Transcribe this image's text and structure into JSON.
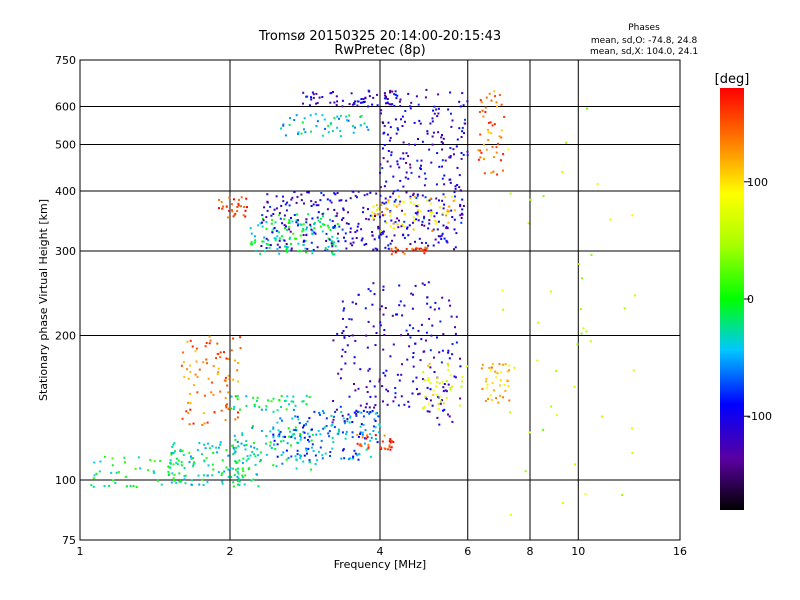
{
  "chart_data": {
    "type": "scatter",
    "title": "Tromsø 20150325 20:14:00-20:15:43",
    "subtitle": "RwPretec (8p)",
    "xlabel": "Frequency [MHz]",
    "ylabel": "Stationary phase Virtual Height [km]",
    "x_scale": "log",
    "y_scale": "log",
    "xlim": [
      1,
      16
    ],
    "ylim": [
      75,
      750
    ],
    "x_ticks": [
      1,
      2,
      4,
      6,
      8,
      10,
      16
    ],
    "x_tick_labels": [
      "1",
      "2",
      "4",
      "6",
      "8",
      "10",
      "16"
    ],
    "y_ticks": [
      75,
      100,
      200,
      300,
      400,
      500,
      600,
      750
    ],
    "y_tick_labels": [
      "75",
      "100",
      "200",
      "300",
      "400",
      "500",
      "600",
      "750"
    ],
    "x_gridlines": [
      2,
      4,
      6,
      8,
      10
    ],
    "y_gridlines": [
      100,
      200,
      300,
      400,
      500,
      600
    ],
    "grid": true,
    "stats_title": "Phases",
    "stats_lines": [
      "mean, sd,O: -74.8, 24.8",
      "mean, sd,X: 104.0, 24.1"
    ],
    "colorbar": {
      "label": "[deg]",
      "range": [
        -180,
        180
      ],
      "tick_values": [
        100,
        0,
        -100
      ],
      "tick_labels": [
        "100",
        "0",
        "-100"
      ]
    },
    "clusters": [
      {
        "x_range": [
          1.05,
          1.6
        ],
        "h_range": [
          96,
          112
        ],
        "phase": -10,
        "count": 40
      },
      {
        "x_range": [
          1.5,
          2.3
        ],
        "h_range": [
          97,
          120
        ],
        "phase": -20,
        "count": 140
      },
      {
        "x_range": [
          2.0,
          3.0
        ],
        "h_range": [
          105,
          130
        ],
        "phase": -30,
        "count": 80
      },
      {
        "x_range": [
          1.6,
          2.1
        ],
        "h_range": [
          130,
          200
        ],
        "phase": 140,
        "count": 90
      },
      {
        "x_range": [
          2.0,
          2.9
        ],
        "h_range": [
          140,
          150
        ],
        "phase": -20,
        "count": 40
      },
      {
        "x_range": [
          2.4,
          4.0
        ],
        "h_range": [
          110,
          140
        ],
        "phase": -60,
        "count": 160
      },
      {
        "x_range": [
          3.2,
          5.8
        ],
        "h_range": [
          130,
          260
        ],
        "phase": -110,
        "count": 220
      },
      {
        "x_range": [
          3.6,
          4.3
        ],
        "h_range": [
          115,
          125
        ],
        "phase": 160,
        "count": 30
      },
      {
        "x_range": [
          4.8,
          6.0
        ],
        "h_range": [
          140,
          175
        ],
        "phase": 80,
        "count": 40
      },
      {
        "x_range": [
          6.4,
          7.3
        ],
        "h_range": [
          145,
          175
        ],
        "phase": 110,
        "count": 40
      },
      {
        "x_range": [
          2.2,
          3.3
        ],
        "h_range": [
          295,
          360
        ],
        "phase": -20,
        "count": 130
      },
      {
        "x_range": [
          2.3,
          5.9
        ],
        "h_range": [
          300,
          400
        ],
        "phase": -110,
        "count": 300
      },
      {
        "x_range": [
          3.8,
          5.7
        ],
        "h_range": [
          330,
          390
        ],
        "phase": 100,
        "count": 70
      },
      {
        "x_range": [
          4.2,
          5.0
        ],
        "h_range": [
          295,
          305
        ],
        "phase": 160,
        "count": 25
      },
      {
        "x_range": [
          4.0,
          6.0
        ],
        "h_range": [
          400,
          650
        ],
        "phase": -110,
        "count": 170
      },
      {
        "x_range": [
          2.8,
          4.3
        ],
        "h_range": [
          600,
          650
        ],
        "phase": -110,
        "count": 60
      },
      {
        "x_range": [
          2.5,
          3.8
        ],
        "h_range": [
          520,
          580
        ],
        "phase": -40,
        "count": 50
      },
      {
        "x_range": [
          6.3,
          7.1
        ],
        "h_range": [
          430,
          650
        ],
        "phase": 140,
        "count": 50
      },
      {
        "x_range": [
          1.9,
          2.2
        ],
        "h_range": [
          350,
          390
        ],
        "phase": 160,
        "count": 30
      },
      {
        "x_range": [
          7.0,
          13.0
        ],
        "h_range": [
          80,
          600
        ],
        "phase": 60,
        "count": 45
      }
    ]
  }
}
